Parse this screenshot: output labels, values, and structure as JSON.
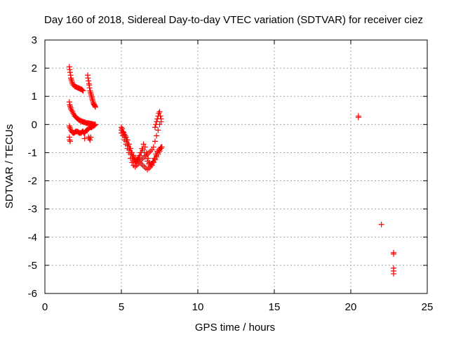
{
  "colors": {
    "points": "#ff0000",
    "grid": "#a0a0a0",
    "frame": "#000000"
  },
  "chart_data": {
    "type": "scatter",
    "title": "Day 160 of 2018, Sidereal Day-to-day VTEC variation (SDTVAR) for receiver ciez",
    "xlabel": "GPS time / hours",
    "ylabel": "SDTVAR / TECUs",
    "xlim": [
      0,
      25
    ],
    "ylim": [
      -6,
      3
    ],
    "xticks": [
      0,
      5,
      10,
      15,
      20,
      25
    ],
    "yticks": [
      -6,
      -5,
      -4,
      -3,
      -2,
      -1,
      0,
      1,
      2,
      3
    ],
    "grid": true,
    "marker": "plus",
    "series": [
      {
        "x": [
          1.6,
          1.62,
          1.65,
          1.68,
          1.7,
          1.72,
          1.75,
          1.78,
          1.8,
          1.85,
          1.9,
          1.95,
          2.0,
          2.05,
          2.1,
          2.15,
          2.2,
          2.25,
          2.3,
          2.35,
          2.4,
          2.45,
          2.5,
          1.6,
          1.62,
          1.65,
          1.68,
          1.7,
          1.75,
          1.8,
          1.85,
          1.9,
          1.95,
          2.0,
          2.05,
          2.1,
          2.15,
          2.2,
          2.25,
          2.3,
          2.35,
          2.4,
          2.45,
          2.5,
          2.55,
          2.6,
          2.65,
          2.7,
          2.75,
          2.8,
          2.85,
          2.9,
          2.95,
          3.0,
          3.05,
          3.1,
          3.15,
          3.2,
          3.25,
          3.3,
          1.6,
          1.63,
          1.66,
          1.7,
          1.75,
          1.8,
          1.85,
          1.9,
          1.95,
          2.0,
          2.05,
          2.1,
          2.15,
          2.2,
          2.25,
          2.3,
          2.35,
          2.4,
          2.45,
          2.5,
          2.55,
          2.6,
          2.65,
          2.7,
          2.75,
          2.8,
          2.85,
          2.9,
          2.95,
          3.0,
          3.05,
          3.1,
          3.15,
          3.2,
          3.25,
          3.3,
          1.6,
          1.62,
          1.65,
          2.6,
          2.85,
          2.9,
          2.95,
          3.0,
          2.8,
          2.82,
          2.85,
          2.88,
          2.9,
          2.92,
          2.95,
          2.98,
          3.0,
          3.03,
          3.05,
          3.08,
          3.1,
          3.12,
          3.15,
          3.18,
          3.2,
          3.22,
          3.25,
          3.28,
          3.3,
          5.0,
          5.1,
          5.2,
          5.3,
          5.4,
          5.5,
          5.6,
          5.7,
          5.8,
          5.9,
          6.0,
          6.1,
          6.2,
          6.3,
          6.4,
          6.5,
          6.6,
          6.7,
          6.8,
          6.9,
          7.0,
          7.1,
          7.2,
          7.3,
          7.4,
          7.5,
          7.6,
          5.0,
          5.1,
          5.2,
          5.3,
          5.4,
          5.5,
          5.6,
          5.7,
          5.8,
          5.9,
          6.0,
          6.1,
          6.2,
          6.3,
          6.4,
          6.5,
          6.6,
          6.7,
          6.8,
          6.9,
          7.0,
          7.1,
          7.2,
          7.3,
          7.4,
          7.5,
          7.6,
          5.0,
          5.1,
          5.2,
          5.3,
          5.4,
          5.5,
          5.6,
          5.7,
          5.8,
          5.9,
          6.0,
          6.1,
          6.2,
          6.3,
          6.4,
          6.5,
          6.6,
          6.7,
          6.8,
          6.9,
          7.0,
          7.1,
          7.2,
          7.3,
          7.4,
          7.5,
          7.6,
          5.05,
          5.15,
          5.25,
          5.35,
          5.45,
          5.55,
          5.65,
          5.75,
          5.85,
          5.95,
          6.05,
          6.15,
          6.25,
          6.35,
          6.45,
          6.55,
          6.65,
          6.75,
          6.85,
          6.95,
          7.05,
          7.15,
          7.25,
          7.35,
          7.45,
          7.55,
          7.65,
          7.2,
          7.25,
          7.3,
          7.35,
          7.4,
          7.45,
          7.5,
          7.55,
          7.6,
          20.5,
          20.5,
          22.0,
          22.8,
          22.8,
          22.8,
          22.8,
          22.8
        ],
        "y": [
          2.05,
          1.95,
          1.85,
          1.75,
          1.65,
          1.6,
          1.55,
          1.5,
          1.45,
          1.4,
          1.4,
          1.35,
          1.35,
          1.33,
          1.32,
          1.3,
          1.3,
          1.28,
          1.27,
          1.25,
          1.25,
          1.22,
          1.2,
          0.8,
          0.7,
          0.65,
          0.6,
          0.55,
          0.5,
          0.45,
          0.4,
          0.35,
          0.3,
          0.28,
          0.25,
          0.22,
          0.2,
          0.18,
          0.15,
          0.15,
          0.12,
          0.12,
          0.1,
          0.1,
          0.08,
          0.08,
          0.07,
          0.05,
          0.05,
          0.05,
          0.05,
          0.04,
          0.03,
          0.03,
          0.02,
          0.02,
          0.01,
          0.0,
          0.0,
          0.0,
          -0.05,
          -0.1,
          -0.15,
          -0.2,
          -0.25,
          -0.28,
          -0.3,
          -0.3,
          -0.28,
          -0.25,
          -0.25,
          -0.25,
          -0.25,
          -0.28,
          -0.3,
          -0.3,
          -0.3,
          -0.28,
          -0.25,
          -0.25,
          -0.3,
          -0.3,
          -0.25,
          -0.22,
          -0.2,
          -0.18,
          -0.15,
          -0.12,
          -0.1,
          -0.1,
          -0.1,
          -0.08,
          -0.05,
          -0.05,
          -0.03,
          0.0,
          -0.45,
          -0.55,
          -0.6,
          -0.5,
          -0.45,
          -0.5,
          -0.55,
          -0.45,
          1.75,
          1.65,
          1.55,
          1.45,
          1.4,
          1.3,
          1.2,
          1.15,
          1.1,
          1.05,
          1.0,
          0.95,
          0.9,
          0.85,
          0.8,
          0.75,
          0.72,
          0.7,
          0.68,
          0.65,
          0.62,
          -0.1,
          -0.25,
          -0.35,
          -0.45,
          -0.55,
          -0.7,
          -0.85,
          -1.0,
          -1.1,
          -1.2,
          -1.25,
          -1.3,
          -1.3,
          -1.25,
          -1.2,
          -1.15,
          -1.1,
          -1.05,
          -1.0,
          -0.95,
          -0.9,
          -0.8,
          -0.6,
          -0.4,
          -0.2,
          0.0,
          0.2,
          -0.3,
          -0.4,
          -0.55,
          -0.7,
          -0.85,
          -1.0,
          -1.2,
          -1.35,
          -1.45,
          -1.5,
          -1.45,
          -1.4,
          -1.35,
          -1.4,
          -1.45,
          -1.5,
          -1.55,
          -1.6,
          -1.55,
          -1.5,
          -1.45,
          -1.35,
          -1.25,
          -1.15,
          -1.05,
          -0.95,
          -0.85,
          -0.2,
          -0.3,
          -0.45,
          -0.6,
          -0.75,
          -0.9,
          -1.05,
          -1.2,
          -1.3,
          -1.35,
          -1.3,
          -1.2,
          -1.1,
          -1.0,
          -0.9,
          -1.0,
          -1.15,
          -1.3,
          -1.4,
          -1.45,
          -1.4,
          -1.3,
          -1.2,
          -1.1,
          -1.0,
          -0.9,
          -0.8,
          -0.15,
          -0.28,
          -0.4,
          -0.55,
          -0.7,
          -0.85,
          -1.0,
          -1.15,
          -1.25,
          -1.3,
          -1.25,
          -1.15,
          -1.0,
          -0.85,
          -0.7,
          -0.8,
          -1.0,
          -1.2,
          -1.35,
          -1.4,
          -1.35,
          -1.2,
          -1.05,
          -0.95,
          -0.9,
          -0.85,
          -0.8,
          -0.1,
          0.0,
          0.1,
          0.2,
          0.3,
          0.4,
          0.45,
          0.3,
          0.1,
          0.3,
          0.25,
          -3.55,
          -4.55,
          -4.6,
          -5.1,
          -5.2,
          -5.3
        ]
      }
    ]
  }
}
